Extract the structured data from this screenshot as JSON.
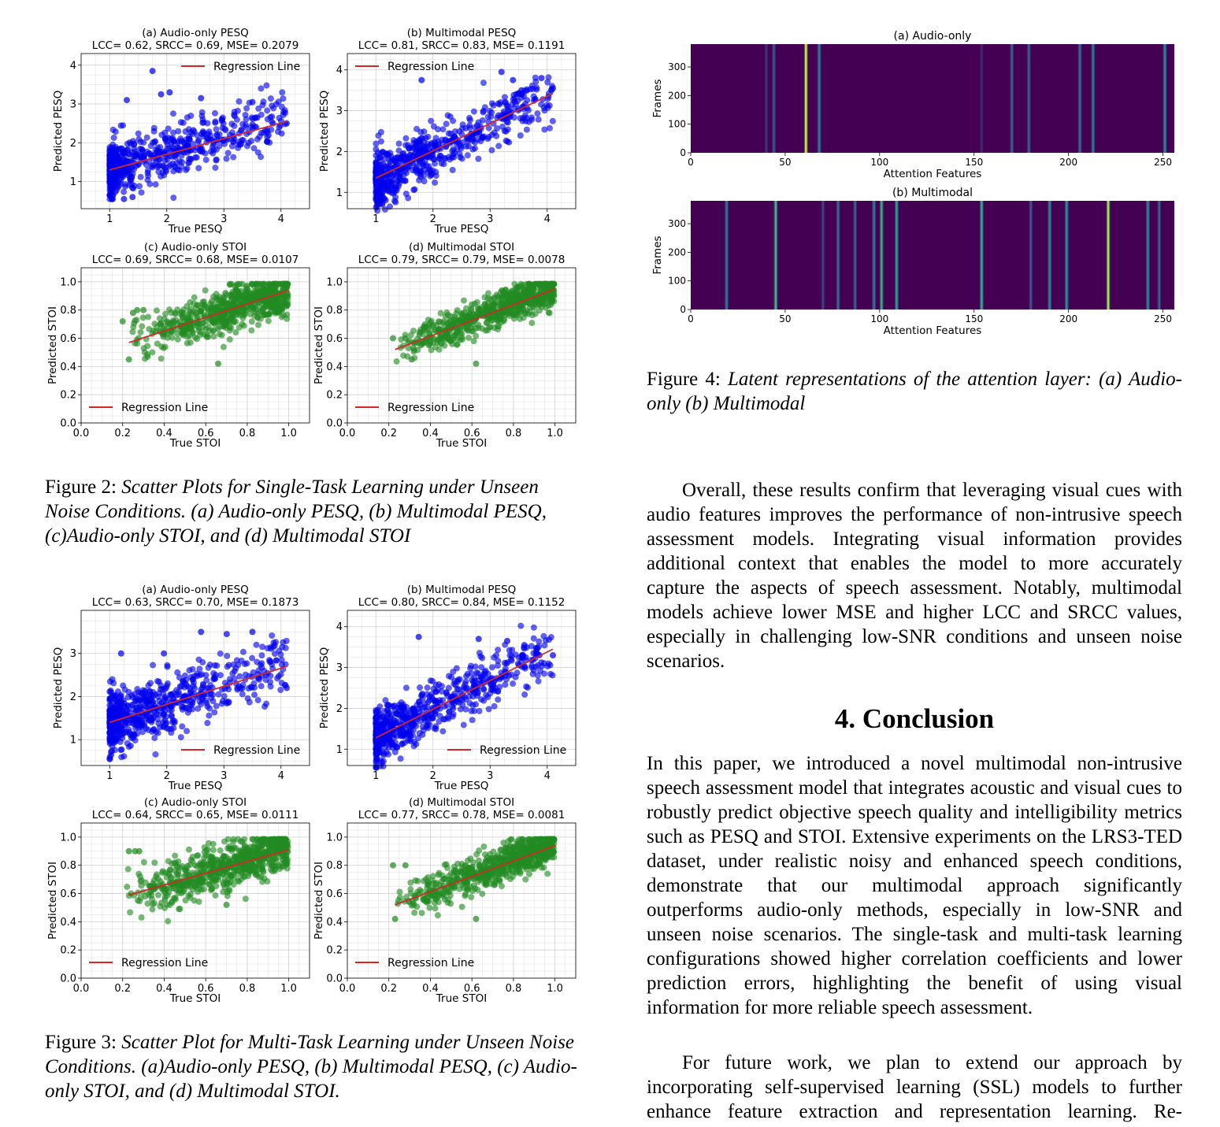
{
  "figure2": {
    "caption_label": "Figure 2:",
    "caption_text": "Scatter Plots for Single-Task Learning under Unseen Noise Conditions. (a) Audio-only PESQ, (b) Multimodal PESQ, (c)Audio-only STOI, and (d) Multimodal STOI"
  },
  "figure3": {
    "caption_label": "Figure 3:",
    "caption_text": "Scatter Plot for Multi-Task Learning under Unseen Noise Conditions. (a)Audio-only PESQ, (b) Multimodal PESQ, (c) Audio-only STOI, and (d) Multimodal STOI."
  },
  "figure4": {
    "caption_label": "Figure 4:",
    "caption_text": "Latent representations of the attention layer: (a) Audio-only (b) Multimodal"
  },
  "section": {
    "title": "4.  Conclusion"
  },
  "paragraphs": {
    "overall": "Overall, these results confirm that leveraging visual cues with audio features improves the performance of non-intrusive speech assessment models. Integrating visual information provides additional context that enables the model to more accurately capture the aspects of speech assessment. Notably, multimodal models achieve lower MSE and higher LCC and SRCC values, especially in challenging low-SNR conditions and unseen noise scenarios.",
    "conclusion": "In this paper, we introduced a novel multimodal non-intrusive speech assessment model that integrates acoustic and visual cues to robustly predict objective speech quality and intelligibility metrics such as PESQ and STOI. Extensive experiments on the LRS3-TED dataset, under realistic noisy and enhanced speech conditions, demonstrate that our multimodal approach significantly outperforms audio-only methods, especially in low-SNR and unseen noise scenarios. The single-task and multi-task learning configurations showed higher correlation coefficients and lower prediction errors, highlighting the benefit of using visual information for more reliable speech assessment.",
    "future": "For future work, we plan to extend our approach by incorporating self-supervised learning (SSL) models to further enhance feature extraction and representation learning. Re-"
  },
  "chart_data": [
    {
      "id": "fig2a",
      "type": "scatter",
      "title": "(a) Audio-only PESQ",
      "subtitle": "LCC= 0.62, SRCC= 0.69, MSE= 0.2079",
      "xlabel": "True PESQ",
      "ylabel": "Predicted PESQ",
      "xlim": [
        0.5,
        4.5
      ],
      "ylim": [
        0.3,
        4.3
      ],
      "xticks": [
        1,
        2,
        3,
        4
      ],
      "yticks": [
        1,
        2,
        3,
        4
      ],
      "color": "#0000ee",
      "regression": {
        "x": [
          1.0,
          4.1
        ],
        "y": [
          1.3,
          2.55
        ],
        "color": "#d62728"
      },
      "legend": {
        "label": "Regression Line",
        "position": "top-right"
      },
      "cloud": {
        "xmin": 1.0,
        "xmax": 4.1,
        "slope": 0.42,
        "intercept": 0.9,
        "noise": 0.35,
        "n": 650
      },
      "outliers": [
        [
          1.75,
          3.85
        ],
        [
          2.05,
          3.3
        ],
        [
          1.9,
          3.25
        ],
        [
          1.3,
          3.1
        ],
        [
          1.25,
          0.55
        ],
        [
          1.4,
          0.6
        ],
        [
          2.6,
          3.15
        ],
        [
          3.5,
          3.05
        ],
        [
          4.1,
          2.5
        ]
      ]
    },
    {
      "id": "fig2b",
      "type": "scatter",
      "title": "(b) Multimodal PESQ",
      "subtitle": "LCC= 0.81, SRCC= 0.83, MSE= 0.1191",
      "xlabel": "True PESQ",
      "ylabel": "Predicted PESQ",
      "xlim": [
        0.5,
        4.5
      ],
      "ylim": [
        0.6,
        4.4
      ],
      "xticks": [
        1,
        2,
        3,
        4
      ],
      "yticks": [
        1,
        2,
        3,
        4
      ],
      "color": "#0000ee",
      "regression": {
        "x": [
          1.0,
          4.1
        ],
        "y": [
          1.35,
          3.42
        ],
        "color": "#d62728"
      },
      "legend": {
        "label": "Regression Line",
        "position": "top-left"
      },
      "cloud": {
        "xmin": 1.0,
        "xmax": 4.1,
        "slope": 0.68,
        "intercept": 0.62,
        "noise": 0.33,
        "n": 650
      },
      "outliers": [
        [
          1.8,
          3.75
        ],
        [
          3.2,
          3.95
        ],
        [
          3.4,
          3.75
        ],
        [
          3.9,
          3.8
        ],
        [
          4.1,
          3.55
        ],
        [
          3.55,
          3.5
        ],
        [
          1.1,
          1.1
        ]
      ]
    },
    {
      "id": "fig2c",
      "type": "scatter",
      "title": "(c) Audio-only STOI",
      "subtitle": "LCC= 0.69, SRCC= 0.68, MSE= 0.0107",
      "xlabel": "True STOI",
      "ylabel": "Predicted STOI",
      "xlim": [
        0.0,
        1.1
      ],
      "ylim": [
        0.0,
        1.1
      ],
      "xticks": [
        0.0,
        0.2,
        0.4,
        0.6,
        0.8,
        1.0
      ],
      "yticks": [
        0.0,
        0.2,
        0.4,
        0.6,
        0.8,
        1.0
      ],
      "color": "#228b22",
      "regression": {
        "x": [
          0.23,
          1.0
        ],
        "y": [
          0.57,
          0.94
        ],
        "color": "#d62728"
      },
      "legend": {
        "label": "Regression Line",
        "position": "lower-left"
      },
      "cloud": {
        "xmin": 0.22,
        "xmax": 1.0,
        "slope": 0.5,
        "intercept": 0.45,
        "noise": 0.08,
        "n": 700
      },
      "outliers": [
        [
          0.23,
          0.45
        ],
        [
          0.32,
          0.47
        ],
        [
          0.27,
          0.8
        ],
        [
          0.3,
          0.8
        ],
        [
          0.2,
          0.72
        ],
        [
          0.25,
          0.78
        ],
        [
          0.66,
          0.42
        ]
      ]
    },
    {
      "id": "fig2d",
      "type": "scatter",
      "title": "(d) Multimodal STOI",
      "subtitle": "LCC= 0.79, SRCC= 0.79, MSE= 0.0078",
      "xlabel": "True STOI",
      "ylabel": "Predicted STOI",
      "xlim": [
        0.0,
        1.1
      ],
      "ylim": [
        0.0,
        1.1
      ],
      "xticks": [
        0.0,
        0.2,
        0.4,
        0.6,
        0.8,
        1.0
      ],
      "yticks": [
        0.0,
        0.2,
        0.4,
        0.6,
        0.8,
        1.0
      ],
      "color": "#228b22",
      "regression": {
        "x": [
          0.23,
          1.0
        ],
        "y": [
          0.52,
          0.95
        ],
        "color": "#d62728"
      },
      "legend": {
        "label": "Regression Line",
        "position": "lower-left"
      },
      "cloud": {
        "xmin": 0.22,
        "xmax": 1.0,
        "slope": 0.58,
        "intercept": 0.38,
        "noise": 0.06,
        "n": 700
      },
      "outliers": [
        [
          0.31,
          0.45
        ],
        [
          0.62,
          0.42
        ],
        [
          0.22,
          0.6
        ],
        [
          0.28,
          0.6
        ]
      ]
    },
    {
      "id": "fig3a",
      "type": "scatter",
      "title": "(a) Audio-only PESQ",
      "subtitle": "LCC= 0.63, SRCC= 0.70, MSE= 0.1873",
      "xlabel": "True PESQ",
      "ylabel": "Predicted PESQ",
      "xlim": [
        0.5,
        4.5
      ],
      "ylim": [
        0.4,
        4.0
      ],
      "xticks": [
        1,
        2,
        3,
        4
      ],
      "yticks": [
        1,
        2,
        3
      ],
      "color": "#0000ee",
      "regression": {
        "x": [
          1.0,
          4.1
        ],
        "y": [
          1.4,
          2.7
        ],
        "color": "#d62728"
      },
      "legend": {
        "label": "Regression Line",
        "position": "lower-right"
      },
      "cloud": {
        "xmin": 1.0,
        "xmax": 4.1,
        "slope": 0.44,
        "intercept": 0.95,
        "noise": 0.35,
        "n": 650
      },
      "outliers": [
        [
          3.05,
          3.45
        ],
        [
          2.6,
          3.5
        ],
        [
          3.5,
          3.5
        ],
        [
          1.95,
          3.0
        ],
        [
          1.2,
          3.0
        ],
        [
          4.1,
          2.2
        ]
      ]
    },
    {
      "id": "fig3b",
      "type": "scatter",
      "title": "(b) Multimodal PESQ",
      "subtitle": "LCC= 0.80, SRCC= 0.84, MSE= 0.1152",
      "xlabel": "True PESQ",
      "ylabel": "Predicted PESQ",
      "xlim": [
        0.5,
        4.5
      ],
      "ylim": [
        0.6,
        4.4
      ],
      "xticks": [
        1,
        2,
        3,
        4
      ],
      "yticks": [
        1,
        2,
        3,
        4
      ],
      "color": "#0000ee",
      "regression": {
        "x": [
          1.0,
          4.1
        ],
        "y": [
          1.28,
          3.45
        ],
        "color": "#d62728"
      },
      "legend": {
        "label": "Regression Line",
        "position": "lower-right"
      },
      "cloud": {
        "xmin": 1.0,
        "xmax": 4.1,
        "slope": 0.7,
        "intercept": 0.58,
        "noise": 0.33,
        "n": 650
      },
      "outliers": [
        [
          1.75,
          3.75
        ],
        [
          2.8,
          3.7
        ],
        [
          3.3,
          3.65
        ],
        [
          3.6,
          3.55
        ],
        [
          4.1,
          3.3
        ]
      ]
    },
    {
      "id": "fig3c",
      "type": "scatter",
      "title": "(c) Audio-only STOI",
      "subtitle": "LCC= 0.64, SRCC= 0.65, MSE= 0.0111",
      "xlabel": "True STOI",
      "ylabel": "Predicted STOI",
      "xlim": [
        0.0,
        1.1
      ],
      "ylim": [
        0.0,
        1.1
      ],
      "xticks": [
        0.0,
        0.2,
        0.4,
        0.6,
        0.8,
        1.0
      ],
      "yticks": [
        0.0,
        0.2,
        0.4,
        0.6,
        0.8,
        1.0
      ],
      "color": "#228b22",
      "regression": {
        "x": [
          0.23,
          1.0
        ],
        "y": [
          0.59,
          0.91
        ],
        "color": "#d62728"
      },
      "legend": {
        "label": "Regression Line",
        "position": "lower-left"
      },
      "cloud": {
        "xmin": 0.22,
        "xmax": 1.0,
        "slope": 0.45,
        "intercept": 0.48,
        "noise": 0.08,
        "n": 700
      },
      "outliers": [
        [
          0.23,
          0.9
        ],
        [
          0.26,
          0.9
        ],
        [
          0.28,
          0.9
        ],
        [
          0.7,
          0.52
        ]
      ]
    },
    {
      "id": "fig3d",
      "type": "scatter",
      "title": "(d) Multimodal STOI",
      "subtitle": "LCC= 0.77, SRCC= 0.78, MSE= 0.0081",
      "xlabel": "True STOI",
      "ylabel": "Predicted STOI",
      "xlim": [
        0.0,
        1.1
      ],
      "ylim": [
        0.0,
        1.1
      ],
      "xticks": [
        0.0,
        0.2,
        0.4,
        0.6,
        0.8,
        1.0
      ],
      "yticks": [
        0.0,
        0.2,
        0.4,
        0.6,
        0.8,
        1.0
      ],
      "color": "#228b22",
      "regression": {
        "x": [
          0.23,
          1.0
        ],
        "y": [
          0.52,
          0.94
        ],
        "color": "#d62728"
      },
      "legend": {
        "label": "Regression Line",
        "position": "lower-left"
      },
      "cloud": {
        "xmin": 0.22,
        "xmax": 1.0,
        "slope": 0.58,
        "intercept": 0.38,
        "noise": 0.065,
        "n": 700
      },
      "outliers": [
        [
          0.23,
          0.42
        ],
        [
          0.22,
          0.8
        ],
        [
          0.28,
          0.8
        ],
        [
          0.62,
          0.42
        ]
      ]
    },
    {
      "id": "fig4a",
      "type": "heatmap",
      "title": "(a) Audio-only",
      "xlabel": "Attention Features",
      "ylabel": "Frames",
      "xlim": [
        0,
        256
      ],
      "ylim": [
        0,
        380
      ],
      "xticks": [
        0,
        50,
        100,
        150,
        200,
        250
      ],
      "yticks": [
        0,
        100,
        200,
        300
      ],
      "background": "#440154",
      "activations": [
        [
          40,
          0.15
        ],
        [
          44,
          0.25
        ],
        [
          61,
          0.95
        ],
        [
          68,
          0.4
        ],
        [
          154,
          0.12
        ],
        [
          170,
          0.3
        ],
        [
          179,
          0.3
        ],
        [
          206,
          0.35
        ],
        [
          213,
          0.4
        ],
        [
          251,
          0.45
        ]
      ]
    },
    {
      "id": "fig4b",
      "type": "heatmap",
      "title": "(b) Multimodal",
      "xlabel": "Attention Features",
      "ylabel": "Frames",
      "xlim": [
        0,
        256
      ],
      "ylim": [
        0,
        380
      ],
      "xticks": [
        0,
        50,
        100,
        150,
        200,
        250
      ],
      "yticks": [
        0,
        100,
        200,
        300
      ],
      "background": "#440154",
      "activations": [
        [
          19,
          0.4
        ],
        [
          45,
          0.65
        ],
        [
          70,
          0.2
        ],
        [
          78,
          0.35
        ],
        [
          87,
          0.3
        ],
        [
          97,
          0.4
        ],
        [
          101,
          0.6
        ],
        [
          109,
          0.55
        ],
        [
          154,
          0.6
        ],
        [
          180,
          0.25
        ],
        [
          190,
          0.45
        ],
        [
          199,
          0.5
        ],
        [
          221,
          0.9
        ],
        [
          242,
          0.45
        ],
        [
          248,
          0.3
        ]
      ]
    }
  ]
}
